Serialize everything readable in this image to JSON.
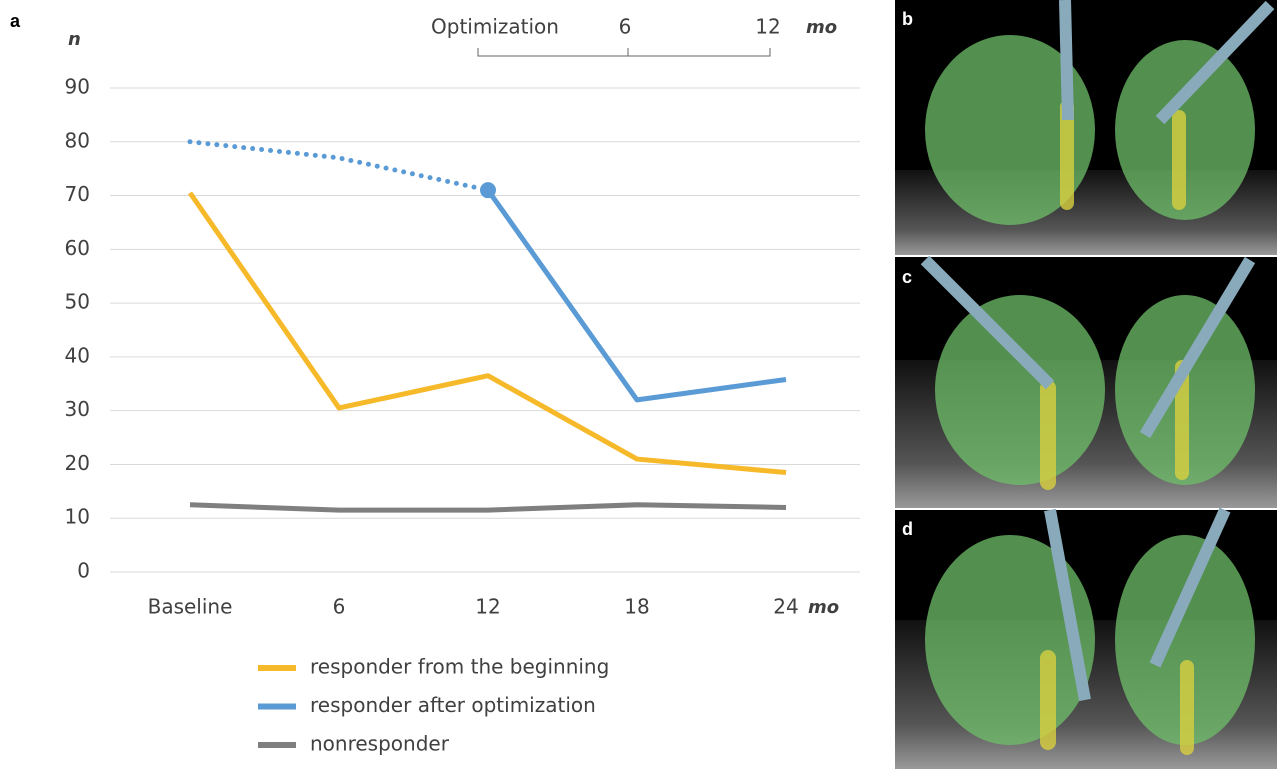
{
  "panel_label": "a",
  "image_panels": [
    "b",
    "c",
    "d"
  ],
  "chart_data": {
    "type": "line",
    "y_axis_label": "n",
    "x_unit": "mo",
    "categories": [
      "Baseline",
      "6",
      "12",
      "18",
      "24"
    ],
    "top_axis": {
      "labels": [
        "Optimization",
        "6",
        "12"
      ],
      "unit": "mo"
    },
    "ylim": [
      0,
      90
    ],
    "yticks": [
      0,
      10,
      20,
      30,
      40,
      50,
      60,
      70,
      80,
      90
    ],
    "grid": true,
    "series": [
      {
        "name": "responder from the beginning",
        "color": "#f6b929",
        "values": [
          70.5,
          30.5,
          36.5,
          21,
          18.5
        ]
      },
      {
        "name": "responder after optimization",
        "color": "#5b9bd5",
        "values": [
          null,
          null,
          71,
          32,
          35.8
        ],
        "start_marker": true
      },
      {
        "name": "nonresponder",
        "color": "#7f7f7f",
        "values": [
          12.5,
          11.5,
          11.5,
          12.5,
          12
        ]
      },
      {
        "color": "#5b9bd5",
        "dash": "dotted",
        "values": [
          80,
          77,
          71,
          null,
          null
        ]
      }
    ]
  }
}
